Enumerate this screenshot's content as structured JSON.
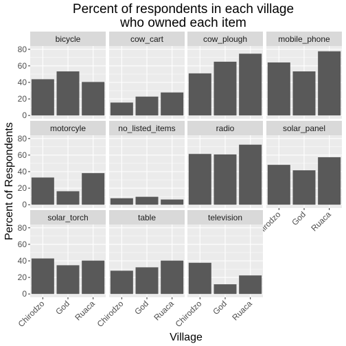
{
  "chart_data": {
    "type": "bar",
    "title_lines": [
      "Percent of respondents in each village",
      "who owned each item"
    ],
    "xlabel": "Village",
    "ylabel": "Percent of Respondents",
    "categories": [
      "Chirodzo",
      "God",
      "Ruaca"
    ],
    "yticks": [
      0,
      20,
      40,
      60,
      80
    ],
    "ylim": [
      -4,
      84
    ],
    "grid": true,
    "bar_color": "#595959",
    "panel_bg": "#ebebeb",
    "strip_bg": "#d9d9d9",
    "facets": [
      {
        "name": "bicycle",
        "values": [
          43.8,
          53.3,
          40.5
        ]
      },
      {
        "name": "cow_cart",
        "values": [
          15.6,
          22.8,
          27.8
        ]
      },
      {
        "name": "cow_plough",
        "values": [
          50.9,
          65.0,
          74.7
        ]
      },
      {
        "name": "mobile_phone",
        "values": [
          64.1,
          53.3,
          77.6
        ]
      },
      {
        "name": "motorcyle",
        "values": [
          32.9,
          16.3,
          38.2
        ]
      },
      {
        "name": "no_listed_items",
        "values": [
          7.8,
          9.6,
          6.3
        ]
      },
      {
        "name": "radio",
        "values": [
          61.4,
          60.8,
          72.6
        ]
      },
      {
        "name": "solar_panel",
        "values": [
          48.2,
          41.6,
          57.4
        ]
      },
      {
        "name": "solar_torch",
        "values": [
          42.9,
          34.7,
          40.3
        ]
      },
      {
        "name": "table",
        "values": [
          28.1,
          32.2,
          40.3
        ]
      },
      {
        "name": "television",
        "values": [
          37.7,
          11.7,
          22.4
        ]
      }
    ]
  }
}
